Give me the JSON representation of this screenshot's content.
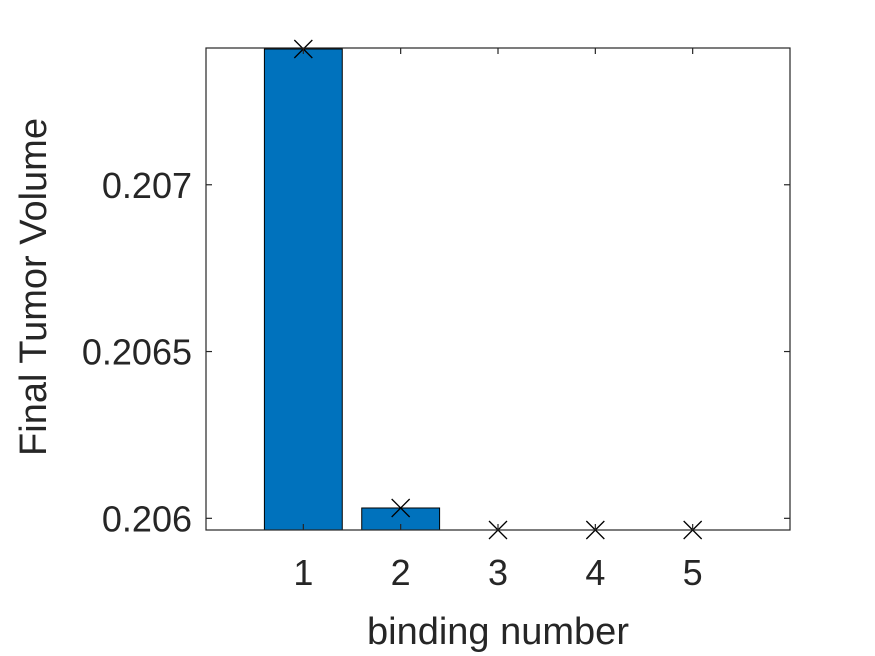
{
  "chart_data": {
    "type": "bar",
    "categories": [
      "1",
      "2",
      "3",
      "4",
      "5"
    ],
    "values": [
      0.207407,
      0.206031,
      0.205952,
      0.205952,
      0.205952
    ],
    "markers": [
      0.207407,
      0.206031,
      0.205952,
      0.205952,
      0.205952
    ],
    "title": "",
    "xlabel": "binding number",
    "ylabel": "Final Tumor Volume",
    "xlim": [
      0,
      6
    ],
    "ylim": [
      0.205965,
      0.20741
    ],
    "yticks": [
      0.206,
      0.2065,
      0.207
    ],
    "ytick_labels": [
      "0.206",
      "0.2065",
      "0.207"
    ],
    "bar_color": "#0072bd",
    "marker_color": "#000000",
    "marker": "x",
    "grid": false,
    "legend": "none"
  }
}
